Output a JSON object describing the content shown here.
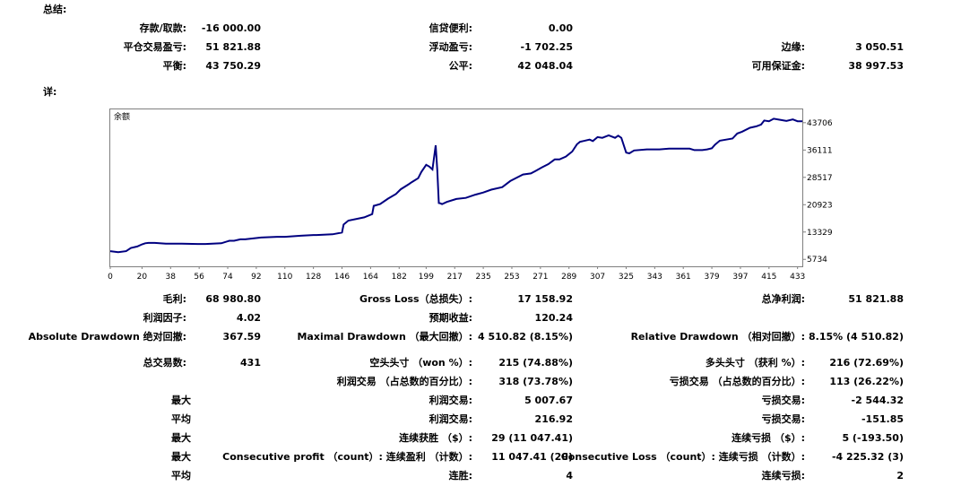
{
  "summary": {
    "title": "总结:",
    "deposit_label": "存款/取款:",
    "deposit_value": "-16 000.00",
    "credit_label": "信贷便利:",
    "credit_value": "0.00",
    "closed_pl_label": "平仓交易盈亏:",
    "closed_pl_value": "51 821.88",
    "floating_label": "浮动盈亏:",
    "floating_value": "-1 702.25",
    "margin_label": "边缘:",
    "margin_value": "3 050.51",
    "balance_label": "平衡:",
    "balance_value": "43 750.29",
    "equity_label": "公平:",
    "equity_value": "42 048.04",
    "free_margin_label": "可用保证金:",
    "free_margin_value": "38 997.53"
  },
  "details": {
    "title": "详:"
  },
  "chart_data": {
    "type": "line",
    "legend": "余额",
    "x_ticks": [
      0,
      20,
      38,
      56,
      74,
      92,
      110,
      128,
      146,
      164,
      182,
      199,
      217,
      235,
      253,
      271,
      289,
      307,
      325,
      343,
      361,
      379,
      397,
      415,
      433
    ],
    "y_ticks": [
      5734,
      13329,
      20923,
      28517,
      36111,
      43706
    ],
    "xlim": [
      0,
      436
    ],
    "ylim": [
      3800,
      47400
    ],
    "color": "#000080",
    "series": [
      {
        "x": [
          0,
          5,
          10,
          13,
          17,
          20,
          22,
          24,
          28,
          35,
          45,
          55,
          60,
          70,
          75,
          78,
          82,
          85,
          95,
          105,
          110,
          120,
          128,
          130,
          140,
          146,
          147,
          150,
          160,
          165,
          166,
          170,
          175,
          180,
          183,
          188,
          190,
          194,
          196,
          199,
          201,
          203,
          205,
          206,
          207,
          208,
          209,
          212,
          218,
          224,
          230,
          235,
          240,
          247,
          252,
          255,
          260,
          265,
          268,
          272,
          276,
          280,
          283,
          287,
          291,
          294,
          296,
          298,
          302,
          304,
          307,
          310,
          314,
          318,
          320,
          322,
          325,
          327,
          330,
          338,
          346,
          352,
          360,
          365,
          368,
          373,
          376,
          379,
          381,
          384,
          388,
          392,
          395,
          398,
          403,
          407,
          410,
          412,
          415,
          418,
          422,
          426,
          430,
          433,
          436
        ],
        "y": [
          8000,
          7700,
          8000,
          8900,
          9300,
          9900,
          10200,
          10300,
          10300,
          10100,
          10100,
          10000,
          10000,
          10200,
          10900,
          10900,
          11300,
          11300,
          11800,
          12000,
          12000,
          12300,
          12500,
          12500,
          12700,
          13200,
          15400,
          16500,
          17400,
          18300,
          20600,
          21100,
          22600,
          23900,
          25200,
          26600,
          27200,
          28300,
          30000,
          32000,
          31500,
          30700,
          37400,
          30500,
          21400,
          21300,
          21100,
          21700,
          22500,
          22800,
          23700,
          24300,
          25100,
          25800,
          27500,
          28200,
          29300,
          29600,
          30300,
          31300,
          32200,
          33500,
          33500,
          34300,
          35700,
          37700,
          38400,
          38600,
          39000,
          38600,
          39700,
          39500,
          40200,
          39500,
          40100,
          39500,
          35400,
          35200,
          36000,
          36300,
          36300,
          36500,
          36500,
          36500,
          36100,
          36100,
          36300,
          36600,
          37600,
          38700,
          39000,
          39300,
          40700,
          41200,
          42300,
          42700,
          43200,
          44300,
          44100,
          44800,
          44500,
          44200,
          44600,
          44100,
          44100
        ]
      }
    ]
  },
  "stats": {
    "gross_profit_label": "毛利:",
    "gross_profit_value": "68 980.80",
    "gross_loss_label": "Gross Loss（总损失）:",
    "gross_loss_value": "17 158.92",
    "net_profit_label": "总净利润:",
    "net_profit_value": "51 821.88",
    "profit_factor_label": "利润因子:",
    "profit_factor_value": "4.02",
    "expected_payoff_label": "预期收益:",
    "expected_payoff_value": "120.24",
    "abs_dd_label": "Absolute Drawdown 绝对回撤:",
    "abs_dd_value": "367.59",
    "max_dd_label": "Maximal Drawdown （最大回撤）:",
    "max_dd_value": "4 510.82 (8.15%)",
    "rel_dd_label": "Relative Drawdown （相对回撤）:",
    "rel_dd_value": "8.15% (4 510.82)",
    "total_trades_label": "总交易数:",
    "total_trades_value": "431",
    "short_label": "空头头寸 （won %）:",
    "short_value": "215 (74.88%)",
    "long_label": "多头头寸 （获利 %）:",
    "long_value": "216 (72.69%)",
    "profit_trades_label": "利润交易 （占总数的百分比）:",
    "profit_trades_value": "318 (73.78%)",
    "loss_trades_label": "亏损交易 （占总数的百分比）:",
    "loss_trades_value": "113 (26.22%)",
    "largest_label": "最大",
    "largest_profit_label": "利润交易:",
    "largest_profit_value": "5 007.67",
    "largest_loss_label": "亏损交易:",
    "largest_loss_value": "-2 544.32",
    "average_label": "平均",
    "avg_profit_label": "利润交易:",
    "avg_profit_value": "216.92",
    "avg_loss_label": "亏损交易:",
    "avg_loss_value": "-151.85",
    "max_label": "最大",
    "cons_wins_label": "连续获胜 （$）:",
    "cons_wins_value": "29 (11 047.41)",
    "cons_losses_label": "连续亏损 （$）:",
    "cons_losses_value": "5 (-193.50)",
    "max2_label": "最大",
    "cons_profit_label": "Consecutive profit （count）: 连续盈利 （计数）:",
    "cons_profit_value": "11 047.41 (29)",
    "cons_loss_label": "Consecutive Loss （count）: 连续亏损 （计数）:",
    "cons_loss_value": "-4 225.32 (3)",
    "average2_label": "平均",
    "avg_cons_wins_label": "连胜:",
    "avg_cons_wins_value": "4",
    "avg_cons_losses_label": "连续亏损:",
    "avg_cons_losses_value": "2"
  }
}
